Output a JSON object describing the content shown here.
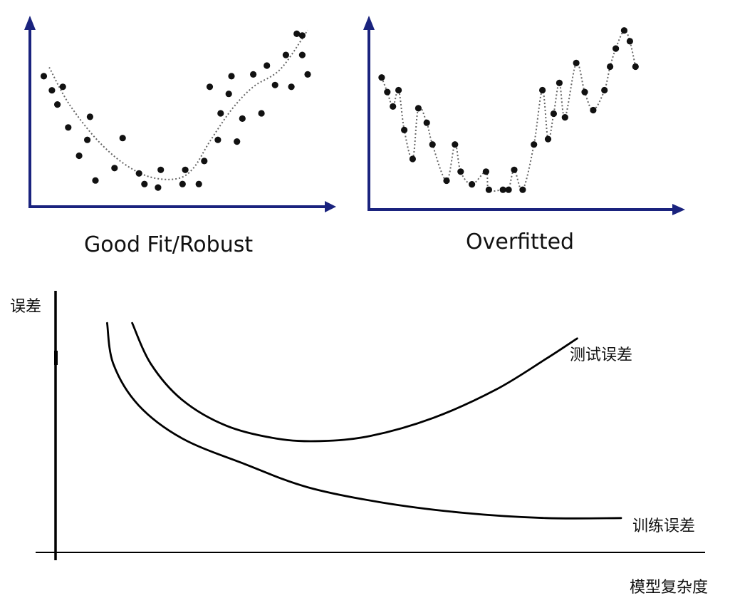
{
  "colors": {
    "axis_top": "#1a237e",
    "axis_bottom": "#000000",
    "points": "#111111",
    "fit_line": "#666666",
    "curve": "#000000"
  },
  "chart_data": [
    {
      "type": "scatter",
      "title": "Good Fit/Robust",
      "xlabel": "",
      "ylabel": "",
      "xlim": [
        0,
        100
      ],
      "ylim": [
        0,
        100
      ],
      "grid": false,
      "points": [
        {
          "x": 3,
          "y": 69
        },
        {
          "x": 6,
          "y": 61
        },
        {
          "x": 8,
          "y": 53
        },
        {
          "x": 10,
          "y": 63
        },
        {
          "x": 12,
          "y": 40
        },
        {
          "x": 16,
          "y": 24
        },
        {
          "x": 19,
          "y": 33
        },
        {
          "x": 20,
          "y": 46
        },
        {
          "x": 22,
          "y": 10
        },
        {
          "x": 29,
          "y": 17
        },
        {
          "x": 32,
          "y": 34
        },
        {
          "x": 38,
          "y": 14
        },
        {
          "x": 40,
          "y": 8
        },
        {
          "x": 45,
          "y": 6
        },
        {
          "x": 46,
          "y": 16
        },
        {
          "x": 55,
          "y": 16
        },
        {
          "x": 54,
          "y": 8
        },
        {
          "x": 60,
          "y": 8
        },
        {
          "x": 62,
          "y": 21
        },
        {
          "x": 64,
          "y": 63
        },
        {
          "x": 67,
          "y": 33
        },
        {
          "x": 68,
          "y": 48
        },
        {
          "x": 71,
          "y": 59
        },
        {
          "x": 72,
          "y": 69
        },
        {
          "x": 74,
          "y": 32
        },
        {
          "x": 76,
          "y": 45
        },
        {
          "x": 80,
          "y": 70
        },
        {
          "x": 83,
          "y": 48
        },
        {
          "x": 85,
          "y": 75
        },
        {
          "x": 88,
          "y": 64
        },
        {
          "x": 92,
          "y": 81
        },
        {
          "x": 94,
          "y": 63
        },
        {
          "x": 96,
          "y": 93
        },
        {
          "x": 98,
          "y": 81
        },
        {
          "x": 98,
          "y": 92
        },
        {
          "x": 100,
          "y": 70
        }
      ],
      "fit": [
        {
          "x": 5,
          "y": 74
        },
        {
          "x": 12,
          "y": 54
        },
        {
          "x": 22,
          "y": 34
        },
        {
          "x": 32,
          "y": 20
        },
        {
          "x": 42,
          "y": 12
        },
        {
          "x": 52,
          "y": 11
        },
        {
          "x": 58,
          "y": 17
        },
        {
          "x": 64,
          "y": 32
        },
        {
          "x": 72,
          "y": 50
        },
        {
          "x": 80,
          "y": 63
        },
        {
          "x": 90,
          "y": 73
        },
        {
          "x": 100,
          "y": 95
        }
      ]
    },
    {
      "type": "scatter",
      "title": "Overfitted",
      "xlabel": "",
      "ylabel": "",
      "xlim": [
        0,
        100
      ],
      "ylim": [
        0,
        100
      ],
      "grid": false,
      "points": [
        {
          "x": 3,
          "y": 69
        },
        {
          "x": 5,
          "y": 61
        },
        {
          "x": 7,
          "y": 53
        },
        {
          "x": 9,
          "y": 62
        },
        {
          "x": 11,
          "y": 40
        },
        {
          "x": 14,
          "y": 24
        },
        {
          "x": 16,
          "y": 52
        },
        {
          "x": 19,
          "y": 44
        },
        {
          "x": 21,
          "y": 32
        },
        {
          "x": 26,
          "y": 12
        },
        {
          "x": 29,
          "y": 32
        },
        {
          "x": 31,
          "y": 17
        },
        {
          "x": 35,
          "y": 10
        },
        {
          "x": 40,
          "y": 17
        },
        {
          "x": 41,
          "y": 7
        },
        {
          "x": 46,
          "y": 7
        },
        {
          "x": 48,
          "y": 7
        },
        {
          "x": 50,
          "y": 18
        },
        {
          "x": 53,
          "y": 7
        },
        {
          "x": 57,
          "y": 32
        },
        {
          "x": 60,
          "y": 62
        },
        {
          "x": 62,
          "y": 35
        },
        {
          "x": 64,
          "y": 49
        },
        {
          "x": 66,
          "y": 66
        },
        {
          "x": 68,
          "y": 47
        },
        {
          "x": 72,
          "y": 77
        },
        {
          "x": 75,
          "y": 61
        },
        {
          "x": 78,
          "y": 51
        },
        {
          "x": 82,
          "y": 62
        },
        {
          "x": 84,
          "y": 75
        },
        {
          "x": 86,
          "y": 85
        },
        {
          "x": 89,
          "y": 95
        },
        {
          "x": 91,
          "y": 89
        },
        {
          "x": 93,
          "y": 75
        }
      ],
      "fit": [
        {
          "x": 3,
          "y": 69
        },
        {
          "x": 5,
          "y": 61
        },
        {
          "x": 7,
          "y": 53
        },
        {
          "x": 9,
          "y": 62
        },
        {
          "x": 11,
          "y": 40
        },
        {
          "x": 14,
          "y": 24
        },
        {
          "x": 16,
          "y": 52
        },
        {
          "x": 19,
          "y": 44
        },
        {
          "x": 21,
          "y": 32
        },
        {
          "x": 26,
          "y": 12
        },
        {
          "x": 29,
          "y": 32
        },
        {
          "x": 31,
          "y": 17
        },
        {
          "x": 35,
          "y": 10
        },
        {
          "x": 40,
          "y": 17
        },
        {
          "x": 41,
          "y": 7
        },
        {
          "x": 46,
          "y": 7
        },
        {
          "x": 48,
          "y": 7
        },
        {
          "x": 50,
          "y": 18
        },
        {
          "x": 53,
          "y": 7
        },
        {
          "x": 57,
          "y": 32
        },
        {
          "x": 60,
          "y": 62
        },
        {
          "x": 62,
          "y": 35
        },
        {
          "x": 64,
          "y": 49
        },
        {
          "x": 66,
          "y": 66
        },
        {
          "x": 68,
          "y": 47
        },
        {
          "x": 72,
          "y": 77
        },
        {
          "x": 75,
          "y": 61
        },
        {
          "x": 78,
          "y": 51
        },
        {
          "x": 82,
          "y": 62
        },
        {
          "x": 84,
          "y": 75
        },
        {
          "x": 86,
          "y": 85
        },
        {
          "x": 89,
          "y": 95
        },
        {
          "x": 91,
          "y": 89
        },
        {
          "x": 93,
          "y": 75
        }
      ]
    },
    {
      "type": "line",
      "title": "",
      "xlabel": "模型复杂度",
      "ylabel": "误差",
      "xlim": [
        0,
        100
      ],
      "ylim": [
        0,
        100
      ],
      "grid": false,
      "series": [
        {
          "name": "测试误差",
          "points": [
            {
              "x": 12,
              "y": 88
            },
            {
              "x": 15,
              "y": 72
            },
            {
              "x": 20,
              "y": 58
            },
            {
              "x": 27,
              "y": 48
            },
            {
              "x": 35,
              "y": 43
            },
            {
              "x": 42,
              "y": 42
            },
            {
              "x": 50,
              "y": 44
            },
            {
              "x": 60,
              "y": 51
            },
            {
              "x": 70,
              "y": 62
            },
            {
              "x": 78,
              "y": 74
            },
            {
              "x": 83,
              "y": 82
            }
          ]
        },
        {
          "name": "训练误差",
          "points": [
            {
              "x": 8,
              "y": 88
            },
            {
              "x": 9,
              "y": 72
            },
            {
              "x": 13,
              "y": 56
            },
            {
              "x": 20,
              "y": 43
            },
            {
              "x": 30,
              "y": 33
            },
            {
              "x": 40,
              "y": 24
            },
            {
              "x": 52,
              "y": 18
            },
            {
              "x": 65,
              "y": 14
            },
            {
              "x": 78,
              "y": 12
            },
            {
              "x": 90,
              "y": 12
            }
          ]
        }
      ]
    }
  ]
}
